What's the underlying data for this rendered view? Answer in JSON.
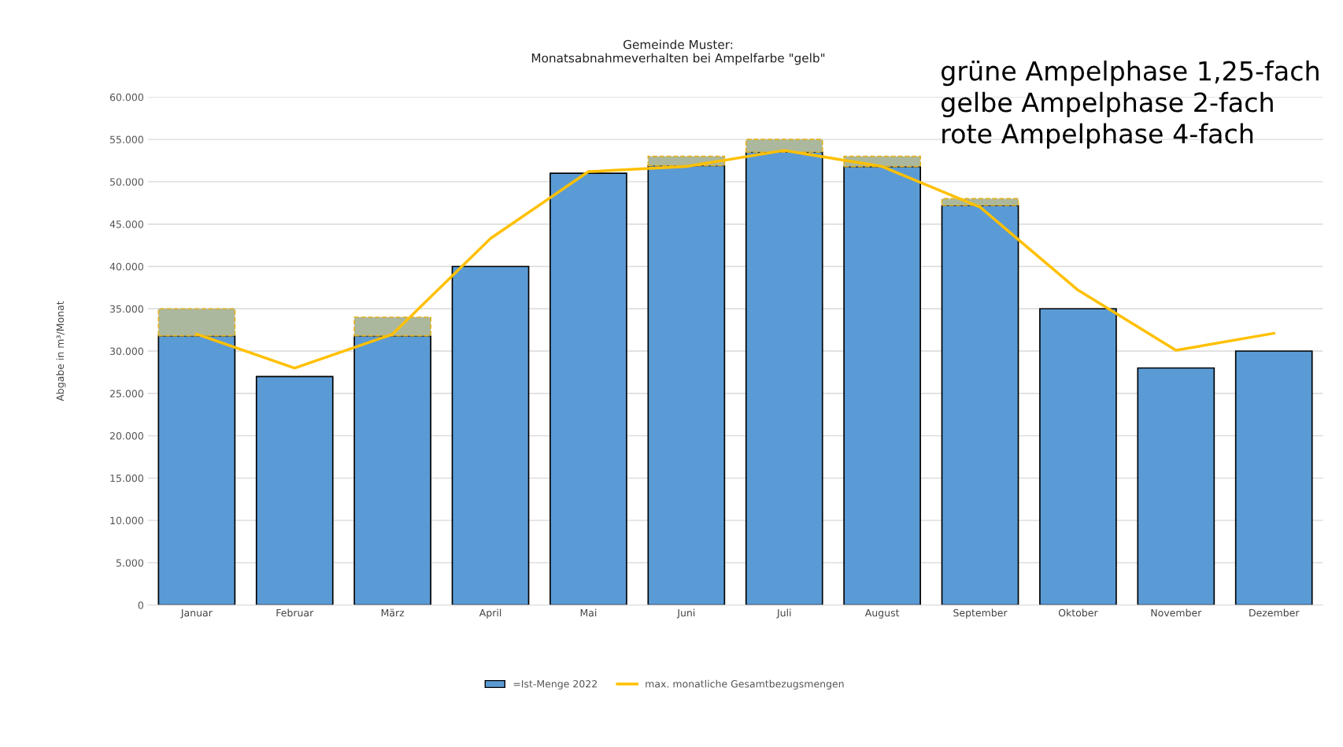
{
  "chart_data": {
    "type": "bar",
    "title": "Gemeinde Muster:\nMonatsabnahmeverhalten bei Ampelfarbe \"gelb\"",
    "ylabel": "Abgabe in m³/Monat",
    "categories": [
      "Januar",
      "Februar",
      "März",
      "April",
      "Mai",
      "Juni",
      "Juli",
      "August",
      "September",
      "Oktober",
      "November",
      "Dezember"
    ],
    "stacked": true,
    "series": [
      {
        "name": "=Ist-Menge 2022",
        "color": "#5b9bd5",
        "values": [
          31800,
          27000,
          31800,
          40000,
          51000,
          51900,
          53500,
          51800,
          47200,
          35000,
          28000,
          30000
        ]
      },
      {
        "color": "#abb89d",
        "values": [
          3200,
          null,
          2200,
          null,
          null,
          1100,
          1500,
          1200,
          800,
          null,
          null,
          null
        ]
      },
      {
        "name": "max. monatliche Gesamtbezugsmengen",
        "type": "line",
        "color": "#ffc000",
        "values": [
          32000,
          28000,
          32000,
          43300,
          51200,
          51800,
          53700,
          51800,
          47000,
          37200,
          30100,
          32100
        ]
      }
    ],
    "ylim": [
      0,
      60000
    ],
    "yticks": [
      {
        "value": 0,
        "label": "0"
      },
      {
        "value": 5000,
        "label": "5.000"
      },
      {
        "value": 10000,
        "label": "10.000"
      },
      {
        "value": 15000,
        "label": "15.000"
      },
      {
        "value": 20000,
        "label": "20.000"
      },
      {
        "value": 25000,
        "label": "25.000"
      },
      {
        "value": 30000,
        "label": "30.000"
      },
      {
        "value": 35000,
        "label": "35.000"
      },
      {
        "value": 40000,
        "label": "40.000"
      },
      {
        "value": 45000,
        "label": "45.000"
      },
      {
        "value": 50000,
        "label": "50.000"
      },
      {
        "value": 55000,
        "label": "55.000"
      },
      {
        "value": 60000,
        "label": "60.000"
      }
    ],
    "grid": "y",
    "legend": "bottom",
    "marker": "none",
    "line_style": "solid",
    "annotations": [
      "grüne Ampelphase 1,25-fach\ngelbe Ampelphase 2-fach\nrote Ampelphase 4-fach"
    ]
  }
}
